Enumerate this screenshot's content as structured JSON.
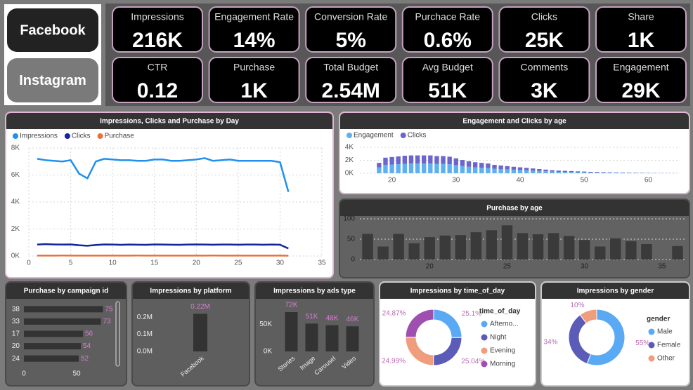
{
  "buttons": [
    "Facebook",
    "Instagram"
  ],
  "kpis": [
    {
      "label": "Impressions",
      "value": "216K"
    },
    {
      "label": "Engagement Rate",
      "value": "14%"
    },
    {
      "label": "Conversion Rate",
      "value": "5%"
    },
    {
      "label": "Purchace Rate",
      "value": "0.6%"
    },
    {
      "label": "Clicks",
      "value": "25K"
    },
    {
      "label": "Share",
      "value": "1K"
    },
    {
      "label": "CTR",
      "value": "0.12"
    },
    {
      "label": "Purchase",
      "value": "1K"
    },
    {
      "label": "Total Budget",
      "value": "2.54M"
    },
    {
      "label": "Avg Budget",
      "value": "51K"
    },
    {
      "label": "Comments",
      "value": "3K"
    },
    {
      "label": "Engagement",
      "value": "29K"
    }
  ],
  "chart_data": [
    {
      "type": "line",
      "title": "Impressions, Clicks and Purchase by Day",
      "x": [
        1,
        2,
        3,
        4,
        5,
        6,
        7,
        8,
        9,
        10,
        11,
        12,
        13,
        14,
        15,
        16,
        17,
        18,
        19,
        20,
        21,
        22,
        23,
        24,
        25,
        26,
        27,
        28,
        29,
        30,
        31
      ],
      "series": [
        {
          "name": "Impressions",
          "color": "#1e90ee",
          "values": [
            7200,
            7100,
            7050,
            7000,
            7100,
            6100,
            5750,
            7000,
            7200,
            7150,
            7100,
            7100,
            7050,
            7050,
            7150,
            7150,
            7050,
            7050,
            7100,
            7150,
            7250,
            7050,
            7100,
            7150,
            7050,
            7050,
            7050,
            7050,
            7050,
            6950,
            4750
          ]
        },
        {
          "name": "Clicks",
          "color": "#13249e",
          "values": [
            850,
            880,
            860,
            850,
            860,
            800,
            760,
            820,
            860,
            850,
            830,
            850,
            840,
            830,
            860,
            850,
            840,
            830,
            850,
            860,
            850,
            840,
            850,
            850,
            840,
            850,
            850,
            840,
            850,
            840,
            560
          ]
        },
        {
          "name": "Purchase",
          "color": "#e8703a",
          "values": [
            35,
            33,
            34,
            36,
            33,
            32,
            30,
            35,
            34,
            33,
            35,
            34,
            36,
            33,
            34,
            35,
            33,
            34,
            35,
            34,
            33,
            36,
            34,
            35,
            33,
            34,
            35,
            34,
            33,
            34,
            25
          ]
        }
      ],
      "xlim": [
        0,
        35
      ],
      "xticks": [
        0,
        5,
        10,
        15,
        20,
        25,
        30,
        35
      ],
      "ylim": [
        0,
        8000
      ],
      "yticks": [
        {
          "value": 0,
          "label": "0K"
        },
        {
          "value": 2000,
          "label": "2K"
        },
        {
          "value": 4000,
          "label": "4K"
        },
        {
          "value": 6000,
          "label": "6K"
        },
        {
          "value": 8000,
          "label": "8K"
        }
      ],
      "grid": true,
      "legend": "top-left"
    },
    {
      "type": "bar",
      "stacked": true,
      "title": "Engagement and Clicks by  age",
      "x": [
        18,
        19,
        20,
        21,
        22,
        23,
        24,
        25,
        26,
        27,
        28,
        29,
        30,
        31,
        32,
        33,
        34,
        35,
        36,
        37,
        38,
        39,
        40,
        41,
        42,
        43,
        44,
        45,
        46,
        47,
        48,
        49,
        50,
        51,
        52,
        53,
        54,
        55,
        56,
        57,
        58,
        59,
        60,
        61,
        62,
        63,
        64
      ],
      "series": [
        {
          "name": "Engagement",
          "color": "#5fb0f2",
          "values": [
            900,
            1300,
            1350,
            1400,
            1450,
            1500,
            1500,
            1500,
            1500,
            1450,
            1450,
            1400,
            1250,
            1100,
            1000,
            900,
            850,
            800,
            700,
            650,
            600,
            550,
            500,
            450,
            400,
            350,
            300,
            250,
            220,
            200,
            180,
            160,
            140,
            120,
            100,
            90,
            80,
            70,
            60,
            50,
            45,
            40,
            35,
            30,
            25,
            20,
            15
          ]
        },
        {
          "name": "Clicks",
          "color": "#6c66cc",
          "values": [
            700,
            1100,
            1150,
            1200,
            1250,
            1250,
            1250,
            1250,
            1250,
            1200,
            1200,
            1150,
            1050,
            950,
            850,
            800,
            750,
            700,
            600,
            550,
            500,
            450,
            420,
            380,
            340,
            300,
            260,
            220,
            190,
            170,
            150,
            130,
            120,
            100,
            90,
            80,
            70,
            60,
            50,
            45,
            40,
            35,
            30,
            25,
            20,
            15,
            10
          ]
        }
      ],
      "xlim": [
        15,
        65
      ],
      "xticks": [
        20,
        30,
        40,
        50,
        60
      ],
      "ylim": [
        0,
        4000
      ],
      "yticks": [
        {
          "value": 0,
          "label": "0K"
        },
        {
          "value": 2000,
          "label": "2K"
        },
        {
          "value": 4000,
          "label": "4K"
        }
      ],
      "grid": true,
      "legend": "top-left"
    },
    {
      "type": "bar",
      "title": "Purchase by age",
      "x": [
        16,
        17,
        18,
        19,
        20,
        21,
        22,
        23,
        24,
        25,
        26,
        27,
        28,
        29,
        30,
        31,
        32,
        33,
        34,
        36
      ],
      "values": [
        63,
        32,
        63,
        40,
        55,
        59,
        60,
        67,
        72,
        84,
        65,
        62,
        65,
        58,
        48,
        32,
        52,
        45,
        38,
        33
      ],
      "color": "#3a3a3a",
      "xlim": [
        15.5,
        36.5
      ],
      "xticks": [
        20,
        25,
        30,
        35
      ],
      "ylim": [
        0,
        100
      ],
      "yticks": [
        0,
        50,
        100
      ],
      "grid": true
    },
    {
      "type": "bar",
      "orientation": "horizontal",
      "title": "Purchase by campaign id",
      "categories": [
        "38",
        "33",
        "17",
        "20",
        "24"
      ],
      "values": [
        75,
        73,
        56,
        54,
        52
      ],
      "color": "#333333",
      "xlim": [
        0,
        90
      ],
      "xticks": [
        0,
        50
      ]
    },
    {
      "type": "bar",
      "title": "Impressions by platform",
      "categories": [
        "Facebook"
      ],
      "values": [
        220000
      ],
      "value_labels": [
        "0.22M"
      ],
      "color": "#333333",
      "ylim": [
        0,
        250000
      ],
      "yticks": [
        {
          "value": 0,
          "label": "0.0M"
        },
        {
          "value": 100000,
          "label": "0.1M"
        },
        {
          "value": 200000,
          "label": "0.2M"
        }
      ]
    },
    {
      "type": "bar",
      "title": "Impressions by ads type",
      "categories": [
        "Stories",
        "Image",
        "Carousel",
        "Video"
      ],
      "values": [
        72000,
        51000,
        48000,
        46000
      ],
      "value_labels": [
        "72K",
        "51K",
        "48K",
        "46K"
      ],
      "color": "#333333",
      "ylim": [
        0,
        90000
      ],
      "yticks": [
        {
          "value": 0,
          "label": "0K"
        },
        {
          "value": 50000,
          "label": "50K"
        }
      ]
    },
    {
      "type": "donut",
      "title": "Impressions by time_of_day",
      "categories": [
        "Afterno...",
        "Night",
        "Evening",
        "Morning"
      ],
      "values": [
        25.1,
        25.04,
        24.99,
        24.87
      ],
      "value_labels": [
        "25.1%",
        "25.04%",
        "24.99%",
        "24,87%"
      ],
      "colors": [
        "#59a9f5",
        "#5b5bb8",
        "#ef9d7c",
        "#9e4fb0"
      ],
      "legend_title": "time_of_day",
      "legend": "right"
    },
    {
      "type": "donut",
      "title": "Impressions by gender",
      "categories": [
        "Male",
        "Female",
        "Other"
      ],
      "values": [
        55,
        34,
        10
      ],
      "value_labels": [
        "55%",
        "34%",
        "10%"
      ],
      "colors": [
        "#59a9f5",
        "#5b5bb8",
        "#ef9d7c"
      ],
      "legend_title": "gender",
      "legend": "right"
    }
  ]
}
